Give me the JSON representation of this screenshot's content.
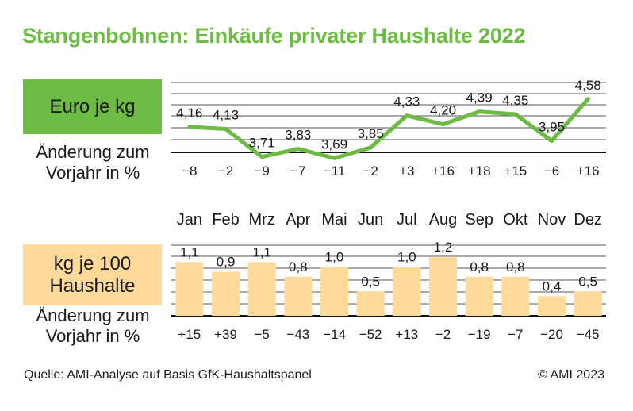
{
  "title": "Stangenbohnen: Einkäufe privater Haushalte 2022",
  "price_label": "Euro je kg",
  "qty_label_line1": "kg je 100",
  "qty_label_line2": "Haushalte",
  "change_label_line1": "Änderung zum",
  "change_label_line2": "Vorjahr in %",
  "source": "Quelle: AMI-Analyse auf Basis GfK-Haushaltspanel",
  "copyright": "© AMI 2023",
  "colors": {
    "green": "#6dbb45",
    "orange": "#fdd99a",
    "text": "#1a1a1a",
    "grid": "#555555"
  },
  "chart_data": [
    {
      "type": "line",
      "title": "Euro je kg",
      "categories": [
        "Jan",
        "Feb",
        "Mrz",
        "Apr",
        "Mai",
        "Jun",
        "Jul",
        "Aug",
        "Sep",
        "Okt",
        "Nov",
        "Dez"
      ],
      "values": [
        4.16,
        4.13,
        3.71,
        3.83,
        3.69,
        3.85,
        4.33,
        4.2,
        4.39,
        4.35,
        3.95,
        4.58
      ],
      "value_labels": [
        "4,16",
        "4,13",
        "3,71",
        "3,83",
        "3,69",
        "3,85",
        "4,33",
        "4,20",
        "4,39",
        "4,35",
        "3,95",
        "4,58"
      ],
      "change_pct_labels": [
        "−8",
        "−2",
        "−9",
        "−7",
        "−11",
        "−2",
        "+3",
        "+16",
        "+18",
        "+15",
        "−6",
        "+16"
      ],
      "color": "#6dbb45",
      "grid": true
    },
    {
      "type": "bar",
      "title": "kg je 100 Haushalte",
      "categories": [
        "Jan",
        "Feb",
        "Mrz",
        "Apr",
        "Mai",
        "Jun",
        "Jul",
        "Aug",
        "Sep",
        "Okt",
        "Nov",
        "Dez"
      ],
      "values": [
        1.1,
        0.9,
        1.1,
        0.8,
        1.0,
        0.5,
        1.0,
        1.2,
        0.8,
        0.8,
        0.4,
        0.5
      ],
      "value_labels": [
        "1,1",
        "0,9",
        "1,1",
        "0,8",
        "1,0",
        "0,5",
        "1,0",
        "1,2",
        "0,8",
        "0,8",
        "0,4",
        "0,5"
      ],
      "change_pct_labels": [
        "+15",
        "+39",
        "−5",
        "−43",
        "−14",
        "−52",
        "+13",
        "−2",
        "−19",
        "−7",
        "−20",
        "−45"
      ],
      "color": "#fdd99a",
      "grid": true
    }
  ]
}
